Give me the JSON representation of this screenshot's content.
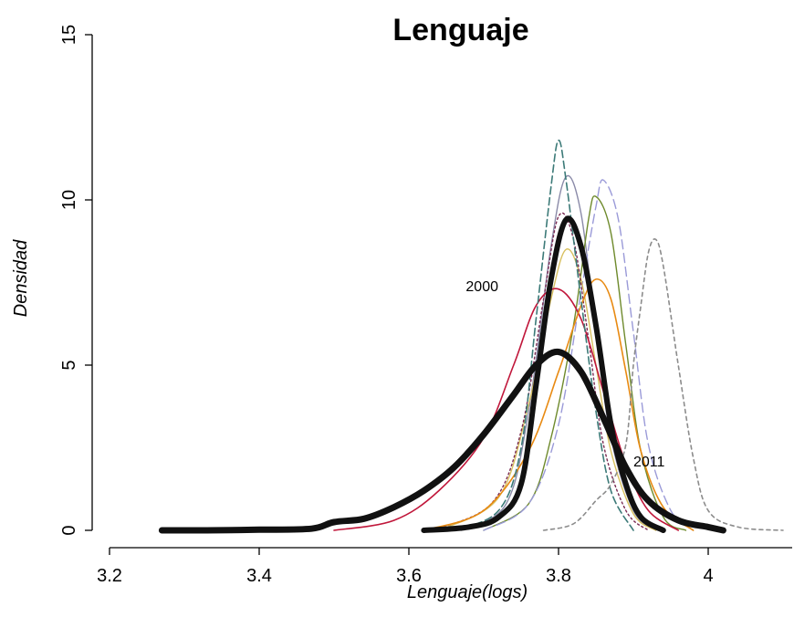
{
  "chart_data": {
    "type": "line",
    "title": "Lenguaje",
    "xlabel": "Lenguaje(logs)",
    "ylabel": "Densidad",
    "xlim": [
      3.2,
      4.1
    ],
    "ylim": [
      0,
      15
    ],
    "xticks": [
      3.2,
      3.4,
      3.6,
      3.8,
      4.0
    ],
    "xtick_labels": [
      "3.2",
      "3.4",
      "3.6",
      "3.8",
      "4"
    ],
    "yticks": [
      0,
      5,
      10,
      15
    ],
    "ytick_labels": [
      "0",
      "5",
      "10",
      "15"
    ],
    "grid": false,
    "legend": "none",
    "annotations": [
      {
        "text": "2000",
        "x": 3.72,
        "y": 7.4
      },
      {
        "text": "2011",
        "x": 3.9,
        "y": 2.1
      }
    ],
    "series": [
      {
        "color": "#111111",
        "width": 7,
        "dash": "",
        "points": [
          [
            3.27,
            0
          ],
          [
            3.33,
            0
          ],
          [
            3.4,
            0.02
          ],
          [
            3.47,
            0.05
          ],
          [
            3.5,
            0.25
          ],
          [
            3.54,
            0.35
          ],
          [
            3.58,
            0.7
          ],
          [
            3.62,
            1.2
          ],
          [
            3.66,
            1.9
          ],
          [
            3.7,
            2.9
          ],
          [
            3.74,
            4.1
          ],
          [
            3.77,
            5.0
          ],
          [
            3.8,
            5.4
          ],
          [
            3.83,
            4.8
          ],
          [
            3.86,
            3.4
          ],
          [
            3.89,
            1.9
          ],
          [
            3.92,
            0.9
          ],
          [
            3.96,
            0.3
          ],
          [
            4.0,
            0.1
          ],
          [
            4.02,
            0
          ]
        ]
      },
      {
        "color": "#111111",
        "width": 6,
        "dash": "",
        "points": [
          [
            3.62,
            0
          ],
          [
            3.68,
            0.1
          ],
          [
            3.72,
            0.4
          ],
          [
            3.75,
            1.4
          ],
          [
            3.77,
            4.4
          ],
          [
            3.79,
            7.6
          ],
          [
            3.81,
            9.4
          ],
          [
            3.83,
            8.6
          ],
          [
            3.85,
            6.2
          ],
          [
            3.87,
            3.2
          ],
          [
            3.89,
            1.4
          ],
          [
            3.91,
            0.4
          ],
          [
            3.94,
            0
          ]
        ]
      },
      {
        "color": "#c0163a",
        "width": 1.6,
        "dash": "",
        "points": [
          [
            3.5,
            0
          ],
          [
            3.58,
            0.3
          ],
          [
            3.64,
            1.2
          ],
          [
            3.7,
            2.8
          ],
          [
            3.74,
            5.0
          ],
          [
            3.77,
            6.8
          ],
          [
            3.8,
            7.3
          ],
          [
            3.83,
            6.4
          ],
          [
            3.86,
            4.2
          ],
          [
            3.89,
            2.0
          ],
          [
            3.92,
            0.6
          ],
          [
            3.96,
            0
          ]
        ]
      },
      {
        "color": "#e88a12",
        "width": 1.6,
        "dash": "",
        "points": [
          [
            3.62,
            0
          ],
          [
            3.7,
            0.6
          ],
          [
            3.76,
            2.4
          ],
          [
            3.8,
            4.8
          ],
          [
            3.83,
            6.8
          ],
          [
            3.85,
            7.6
          ],
          [
            3.87,
            7.0
          ],
          [
            3.89,
            4.8
          ],
          [
            3.91,
            2.4
          ],
          [
            3.94,
            0.7
          ],
          [
            3.98,
            0
          ]
        ]
      },
      {
        "color": "#3c7a78",
        "width": 1.6,
        "dash": "8,4",
        "points": [
          [
            3.66,
            0
          ],
          [
            3.72,
            0.6
          ],
          [
            3.75,
            2.5
          ],
          [
            3.77,
            6.4
          ],
          [
            3.79,
            10.4
          ],
          [
            3.8,
            11.8
          ],
          [
            3.81,
            10.6
          ],
          [
            3.83,
            7.0
          ],
          [
            3.85,
            3.6
          ],
          [
            3.87,
            1.2
          ],
          [
            3.9,
            0
          ]
        ]
      },
      {
        "color": "#8a8aa8",
        "width": 1.4,
        "dash": "",
        "points": [
          [
            3.67,
            0
          ],
          [
            3.73,
            0.8
          ],
          [
            3.76,
            3.6
          ],
          [
            3.79,
            8.6
          ],
          [
            3.81,
            10.7
          ],
          [
            3.83,
            9.6
          ],
          [
            3.85,
            6.0
          ],
          [
            3.87,
            2.8
          ],
          [
            3.9,
            0.6
          ],
          [
            3.93,
            0
          ]
        ]
      },
      {
        "color": "#6e8a2c",
        "width": 1.4,
        "dash": "",
        "points": [
          [
            3.7,
            0
          ],
          [
            3.76,
            0.8
          ],
          [
            3.79,
            2.8
          ],
          [
            3.82,
            6.2
          ],
          [
            3.84,
            9.4
          ],
          [
            3.85,
            10.1
          ],
          [
            3.87,
            9.0
          ],
          [
            3.89,
            5.6
          ],
          [
            3.91,
            2.4
          ],
          [
            3.94,
            0.4
          ],
          [
            3.97,
            0
          ]
        ]
      },
      {
        "color": "#9a9ad8",
        "width": 1.4,
        "dash": "10,5",
        "points": [
          [
            3.7,
            0
          ],
          [
            3.76,
            0.8
          ],
          [
            3.8,
            3.2
          ],
          [
            3.83,
            7.2
          ],
          [
            3.85,
            9.8
          ],
          [
            3.86,
            10.6
          ],
          [
            3.88,
            9.4
          ],
          [
            3.9,
            6.0
          ],
          [
            3.92,
            2.6
          ],
          [
            3.95,
            0.6
          ],
          [
            3.98,
            0
          ]
        ]
      },
      {
        "color": "#d8c060",
        "width": 1.4,
        "dash": "",
        "points": [
          [
            3.64,
            0
          ],
          [
            3.72,
            1.0
          ],
          [
            3.76,
            3.8
          ],
          [
            3.79,
            7.0
          ],
          [
            3.81,
            8.5
          ],
          [
            3.83,
            7.6
          ],
          [
            3.85,
            5.0
          ],
          [
            3.87,
            2.4
          ],
          [
            3.9,
            0.5
          ],
          [
            3.93,
            0
          ]
        ]
      },
      {
        "color": "#7a2a52",
        "width": 1.4,
        "dash": "2,3",
        "points": [
          [
            3.63,
            0
          ],
          [
            3.71,
            0.8
          ],
          [
            3.75,
            3.0
          ],
          [
            3.78,
            7.0
          ],
          [
            3.8,
            9.5
          ],
          [
            3.82,
            8.8
          ],
          [
            3.84,
            5.8
          ],
          [
            3.86,
            2.6
          ],
          [
            3.89,
            0.6
          ],
          [
            3.92,
            0
          ]
        ]
      },
      {
        "color": "#8c8c8c",
        "width": 1.6,
        "dash": "4,4",
        "points": [
          [
            3.78,
            0
          ],
          [
            3.82,
            0.2
          ],
          [
            3.85,
            0.9
          ],
          [
            3.87,
            1.4
          ],
          [
            3.89,
            2.6
          ],
          [
            3.9,
            5.0
          ],
          [
            3.91,
            6.8
          ],
          [
            3.92,
            8.4
          ],
          [
            3.93,
            8.8
          ],
          [
            3.94,
            8.0
          ],
          [
            3.96,
            5.0
          ],
          [
            3.98,
            2.2
          ],
          [
            4.0,
            0.6
          ],
          [
            4.04,
            0.1
          ],
          [
            4.1,
            0
          ]
        ]
      }
    ]
  }
}
